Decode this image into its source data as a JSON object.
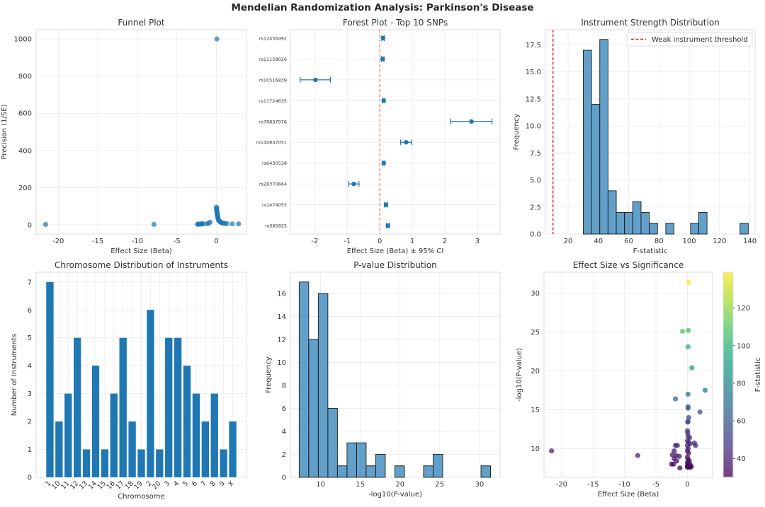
{
  "figure": {
    "title": "Mendelian Randomization Analysis: Parkinson's Disease"
  },
  "chart_data": [
    {
      "id": "funnel",
      "type": "scatter",
      "title": "Funnel Plot",
      "xlabel": "Effect Size (Beta)",
      "ylabel": "Precision (1/SE)",
      "xlim": [
        -22.8,
        3.8
      ],
      "ylim": [
        -50,
        1050
      ],
      "xticks": [
        -20,
        -15,
        -10,
        -5,
        0
      ],
      "yticks": [
        0,
        200,
        400,
        600,
        800,
        1000
      ],
      "grid": true,
      "color": "#1f77b4",
      "points": [
        {
          "x": -21.6,
          "y": 2
        },
        {
          "x": -7.9,
          "y": 2
        },
        {
          "x": 0.05,
          "y": 1000
        },
        {
          "x": -2.4,
          "y": 3
        },
        {
          "x": -2.3,
          "y": 3
        },
        {
          "x": -2.2,
          "y": 3
        },
        {
          "x": -2.1,
          "y": 4
        },
        {
          "x": -2.0,
          "y": 4
        },
        {
          "x": -1.9,
          "y": 4
        },
        {
          "x": -1.8,
          "y": 5
        },
        {
          "x": -1.7,
          "y": 5
        },
        {
          "x": -1.2,
          "y": 6
        },
        {
          "x": -1.0,
          "y": 8
        },
        {
          "x": -0.8,
          "y": 14
        },
        {
          "x": 0.0,
          "y": 95
        },
        {
          "x": 0.02,
          "y": 88
        },
        {
          "x": 0.03,
          "y": 82
        },
        {
          "x": 0.05,
          "y": 76
        },
        {
          "x": 0.06,
          "y": 70
        },
        {
          "x": 0.08,
          "y": 64
        },
        {
          "x": 0.1,
          "y": 58
        },
        {
          "x": 0.12,
          "y": 52
        },
        {
          "x": 0.15,
          "y": 46
        },
        {
          "x": 0.18,
          "y": 40
        },
        {
          "x": 0.2,
          "y": 34
        },
        {
          "x": 0.25,
          "y": 28
        },
        {
          "x": 0.3,
          "y": 22
        },
        {
          "x": 0.4,
          "y": 18
        },
        {
          "x": 0.5,
          "y": 15
        },
        {
          "x": 0.6,
          "y": 12
        },
        {
          "x": 0.75,
          "y": 10
        },
        {
          "x": 0.9,
          "y": 8
        },
        {
          "x": 1.1,
          "y": 7
        },
        {
          "x": 1.3,
          "y": 6
        },
        {
          "x": 2.0,
          "y": 5
        },
        {
          "x": 2.8,
          "y": 5
        }
      ]
    },
    {
      "id": "forest",
      "type": "errorbar",
      "title": "Forest Plot - Top 10 SNPs",
      "xlabel": "Effect Size (Beta) ± 95% CI",
      "xlim": [
        -2.75,
        3.7
      ],
      "xticks": [
        -2,
        -1,
        0,
        1,
        2,
        3
      ],
      "reference_line": 0,
      "grid": true,
      "color": "#1f77b4",
      "reference_color": "#ff6b6b",
      "snps": [
        {
          "label": "rs12456492",
          "beta": 0.1,
          "lo": 0.06,
          "hi": 0.14
        },
        {
          "label": "rs11158026",
          "beta": 0.09,
          "lo": 0.05,
          "hi": 0.13
        },
        {
          "label": "rs10516839",
          "beta": -1.98,
          "lo": -2.45,
          "hi": -1.52
        },
        {
          "label": "rs11724635",
          "beta": 0.12,
          "lo": 0.08,
          "hi": 0.16
        },
        {
          "label": "rs78837976",
          "beta": 2.82,
          "lo": 2.18,
          "hi": 3.45
        },
        {
          "label": "rs144847051",
          "beta": 0.81,
          "lo": 0.64,
          "hi": 0.98
        },
        {
          "label": "rs6430538",
          "beta": 0.12,
          "lo": 0.08,
          "hi": 0.16
        },
        {
          "label": "rs28370664",
          "beta": -0.8,
          "lo": -0.96,
          "hi": -0.64
        },
        {
          "label": "rs1474055",
          "beta": 0.19,
          "lo": 0.14,
          "hi": 0.24
        },
        {
          "label": "rs365825",
          "beta": 0.25,
          "lo": 0.2,
          "hi": 0.3
        }
      ]
    },
    {
      "id": "fstat",
      "type": "bar",
      "subtype": "histogram",
      "title": "Instrument Strength Distribution",
      "xlabel": "F-statistic",
      "ylabel": "Frequency",
      "xlim": [
        5,
        143.5
      ],
      "ylim": [
        0,
        18.9
      ],
      "xticks": [
        20,
        40,
        60,
        80,
        100,
        120,
        140
      ],
      "yticks": [
        0.0,
        2.5,
        5.0,
        7.5,
        10.0,
        12.5,
        15.0,
        17.5
      ],
      "ytick_labels": [
        "0.0",
        "2.5",
        "5.0",
        "7.5",
        "10.0",
        "12.5",
        "15.0",
        "17.5"
      ],
      "bin_start": 30.0,
      "bin_width": 5.45,
      "values": [
        17,
        12,
        18,
        4,
        2,
        2,
        3,
        2,
        1,
        0,
        1,
        0,
        0,
        1,
        2,
        0,
        0,
        0,
        0,
        1
      ],
      "threshold": 10,
      "legend": {
        "label": "Weak instrument threshold",
        "position": "top-right"
      },
      "grid": true,
      "color": "#1f77b4",
      "threshold_color": "#e31a1c"
    },
    {
      "id": "chrom",
      "type": "bar",
      "title": "Chromosome Distribution of Instruments",
      "xlabel": "Chromosome",
      "ylabel": "Number of Instruments",
      "ylim": [
        0,
        7.35
      ],
      "yticks": [
        0,
        1,
        2,
        3,
        4,
        5,
        6,
        7
      ],
      "categories": [
        "1",
        "10",
        "11",
        "12",
        "13",
        "14",
        "15",
        "16",
        "17",
        "18",
        "19",
        "2",
        "20",
        "3",
        "4",
        "5",
        "6",
        "7",
        "8",
        "9",
        "X"
      ],
      "values": [
        7,
        2,
        3,
        5,
        1,
        4,
        1,
        3,
        5,
        2,
        1,
        6,
        1,
        5,
        5,
        4,
        3,
        2,
        3,
        1,
        2
      ],
      "grid": true,
      "color": "#1f77b4"
    },
    {
      "id": "pval",
      "type": "bar",
      "subtype": "histogram",
      "title": "P-value Distribution",
      "xlabel": "-log10(P-value)",
      "ylabel": "Frequency",
      "xlim": [
        6.2,
        32.6
      ],
      "ylim": [
        0,
        17.85
      ],
      "xticks": [
        10,
        15,
        20,
        25,
        30
      ],
      "yticks": [
        0,
        2,
        4,
        6,
        8,
        10,
        12,
        14,
        16
      ],
      "bin_start": 7.3,
      "bin_width": 1.205,
      "values": [
        17,
        12,
        16,
        6,
        1,
        3,
        3,
        1,
        2,
        0,
        1,
        0,
        0,
        1,
        2,
        0,
        0,
        0,
        0,
        1
      ],
      "grid": true,
      "color": "#1f77b4"
    },
    {
      "id": "volcano",
      "type": "scatter",
      "title": "Effect Size vs Significance",
      "xlabel": "Effect Size (Beta)",
      "ylabel": "-log10(P-value)",
      "xlim": [
        -22.8,
        4.0
      ],
      "ylim": [
        6.3,
        32.7
      ],
      "xticks": [
        -20,
        -15,
        -10,
        -5,
        0
      ],
      "yticks": [
        10,
        15,
        20,
        25,
        30
      ],
      "grid": true,
      "colorbar": {
        "label": "F-statistic",
        "range": [
          30,
          139
        ],
        "ticks": [
          40,
          60,
          80,
          100,
          120
        ],
        "colormap": "viridis"
      },
      "points": [
        {
          "x": 0.2,
          "y": 31.4,
          "f": 139
        },
        {
          "x": -0.8,
          "y": 25.1,
          "f": 110
        },
        {
          "x": 0.15,
          "y": 25.2,
          "f": 108
        },
        {
          "x": 0.1,
          "y": 23.1,
          "f": 100
        },
        {
          "x": 0.7,
          "y": 20.4,
          "f": 90
        },
        {
          "x": 2.8,
          "y": 17.5,
          "f": 75
        },
        {
          "x": 0.1,
          "y": 17.0,
          "f": 72
        },
        {
          "x": -1.9,
          "y": 16.4,
          "f": 68
        },
        {
          "x": 0.1,
          "y": 15.4,
          "f": 64
        },
        {
          "x": 0.1,
          "y": 15.2,
          "f": 62
        },
        {
          "x": 2.0,
          "y": 14.7,
          "f": 60
        },
        {
          "x": 0.2,
          "y": 14.0,
          "f": 55
        },
        {
          "x": 0.1,
          "y": 13.5,
          "f": 52
        },
        {
          "x": 0.05,
          "y": 13.4,
          "f": 52
        },
        {
          "x": 0.0,
          "y": 12.3,
          "f": 47
        },
        {
          "x": 0.05,
          "y": 12.0,
          "f": 46
        },
        {
          "x": 0.1,
          "y": 11.6,
          "f": 45
        },
        {
          "x": 0.35,
          "y": 11.4,
          "f": 44
        },
        {
          "x": 0.0,
          "y": 11.0,
          "f": 43
        },
        {
          "x": 0.2,
          "y": 10.8,
          "f": 43
        },
        {
          "x": 0.4,
          "y": 10.6,
          "f": 42
        },
        {
          "x": 1.1,
          "y": 10.7,
          "f": 42
        },
        {
          "x": 1.3,
          "y": 10.4,
          "f": 42
        },
        {
          "x": 0.0,
          "y": 10.4,
          "f": 41
        },
        {
          "x": -1.9,
          "y": 10.4,
          "f": 41
        },
        {
          "x": -1.6,
          "y": 10.4,
          "f": 41
        },
        {
          "x": 0.1,
          "y": 10.0,
          "f": 40
        },
        {
          "x": 0.0,
          "y": 9.7,
          "f": 39
        },
        {
          "x": -21.6,
          "y": 9.7,
          "f": 42
        },
        {
          "x": -2.1,
          "y": 9.7,
          "f": 39
        },
        {
          "x": 0.2,
          "y": 9.4,
          "f": 38
        },
        {
          "x": -2.4,
          "y": 9.2,
          "f": 38
        },
        {
          "x": -1.8,
          "y": 9.1,
          "f": 37
        },
        {
          "x": -7.9,
          "y": 9.1,
          "f": 42
        },
        {
          "x": -1.3,
          "y": 9.0,
          "f": 37
        },
        {
          "x": 0.0,
          "y": 8.9,
          "f": 37
        },
        {
          "x": -2.1,
          "y": 8.7,
          "f": 36
        },
        {
          "x": 0.1,
          "y": 8.6,
          "f": 36
        },
        {
          "x": -1.7,
          "y": 8.4,
          "f": 35
        },
        {
          "x": 0.3,
          "y": 8.4,
          "f": 35
        },
        {
          "x": 0.0,
          "y": 8.2,
          "f": 34
        },
        {
          "x": -2.5,
          "y": 8.0,
          "f": 33
        },
        {
          "x": -2.2,
          "y": 8.0,
          "f": 33
        },
        {
          "x": 0.1,
          "y": 8.0,
          "f": 33
        },
        {
          "x": 0.4,
          "y": 8.0,
          "f": 33
        },
        {
          "x": 0.0,
          "y": 7.8,
          "f": 32
        },
        {
          "x": 0.3,
          "y": 7.7,
          "f": 32
        },
        {
          "x": 0.6,
          "y": 7.7,
          "f": 32
        },
        {
          "x": 0.0,
          "y": 7.6,
          "f": 31
        },
        {
          "x": 0.2,
          "y": 7.6,
          "f": 31
        },
        {
          "x": -1.2,
          "y": 7.5,
          "f": 31
        },
        {
          "x": 0.5,
          "y": 7.6,
          "f": 31
        }
      ]
    }
  ]
}
